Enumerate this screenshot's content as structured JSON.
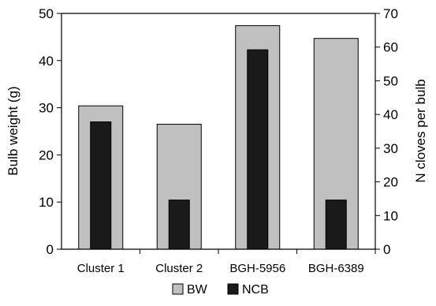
{
  "chart_data": {
    "type": "bar",
    "categories": [
      "Cluster 1",
      "Cluster 2",
      "BGH-5956",
      "BGH-6389"
    ],
    "series": [
      {
        "name": "BW",
        "axis": "left",
        "values": [
          30.4,
          26.5,
          47.4,
          44.7
        ],
        "color": "#c0c0c0"
      },
      {
        "name": "NCB",
        "axis": "right",
        "values": [
          37.8,
          14.6,
          59.2,
          14.6
        ],
        "color": "#1a1a1a"
      }
    ],
    "ylabel": "Bulb weight (g)",
    "ylabel_right": "N cloves per bulb",
    "ylim": [
      0,
      50
    ],
    "ylim_right": [
      0,
      70
    ],
    "yticks": [
      0,
      10,
      20,
      30,
      40,
      50
    ],
    "yticks_right": [
      0,
      10,
      20,
      30,
      40,
      50,
      60,
      70
    ],
    "grid": false,
    "legend_position": "bottom"
  }
}
